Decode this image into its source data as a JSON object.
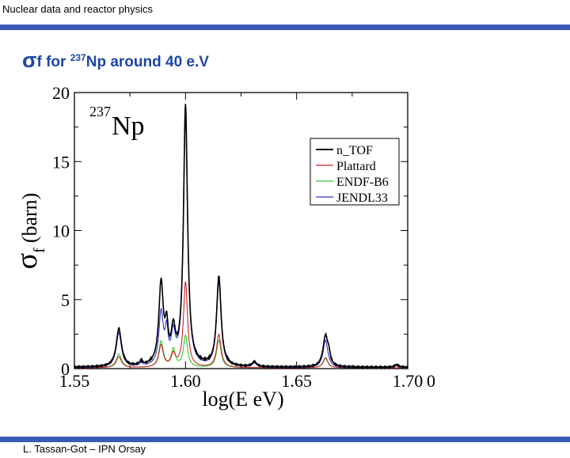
{
  "header": {
    "title": "Nuclear data and reactor physics"
  },
  "slide": {
    "title_symbol": "σ",
    "title_sub": "f",
    "title_pre": " for ",
    "title_mass": "237",
    "title_rest": "Np around 40 e.V"
  },
  "footer": {
    "text": "L. Tassan-Got – IPN Orsay"
  },
  "colors": {
    "bar": "#3a5bb5",
    "title": "#1f46a6"
  },
  "chart_data": {
    "type": "line",
    "nuclide_mass": "237",
    "nuclide_symbol": "Np",
    "xlabel": "log(E eV)",
    "ylabel_symbol": "σ",
    "ylabel_sub": "f",
    "ylabel_unit": "(barn)",
    "xlim": [
      1.55,
      1.7
    ],
    "ylim": [
      0,
      20
    ],
    "xticks": [
      "1.55",
      "1.60",
      "1.65",
      "1.70"
    ],
    "xtick_last_extra": "0",
    "yticks": [
      "0",
      "5",
      "10",
      "15",
      "20"
    ],
    "legend_position": "top-right",
    "series": [
      {
        "name": "n_TOF",
        "color": "#000000",
        "peaks": [
          [
            1.57,
            2.7,
            0.0014
          ],
          [
            1.58,
            0.25,
            0.001
          ],
          [
            1.589,
            5.9,
            0.0012
          ],
          [
            1.5915,
            2.3,
            0.0008
          ],
          [
            1.5945,
            2.3,
            0.0011
          ],
          [
            1.6,
            18.8,
            0.0011
          ],
          [
            1.615,
            6.5,
            0.0012
          ],
          [
            1.631,
            0.35,
            0.0012
          ],
          [
            1.663,
            2.2,
            0.0013
          ],
          [
            1.6645,
            0.6,
            0.0008
          ],
          [
            1.695,
            0.2,
            0.001
          ]
        ]
      },
      {
        "name": "Plattard",
        "color": "#cc2222",
        "peaks": [
          [
            1.57,
            0.8,
            0.0014
          ],
          [
            1.589,
            1.6,
            0.0012
          ],
          [
            1.5945,
            0.9,
            0.0011
          ],
          [
            1.6,
            6.2,
            0.0011
          ],
          [
            1.615,
            2.4,
            0.0012
          ],
          [
            1.663,
            0.7,
            0.0013
          ]
        ]
      },
      {
        "name": "ENDF-B6",
        "color": "#33cc33",
        "peaks": [
          [
            1.57,
            1.0,
            0.0014
          ],
          [
            1.589,
            1.9,
            0.0012
          ],
          [
            1.5945,
            1.3,
            0.0011
          ],
          [
            1.6,
            2.3,
            0.0011
          ],
          [
            1.615,
            2.0,
            0.0012
          ],
          [
            1.663,
            0.75,
            0.0013
          ]
        ]
      },
      {
        "name": "JENDL33",
        "color": "#3333cc",
        "peaks": [
          [
            1.57,
            2.5,
            0.0014
          ],
          [
            1.58,
            0.2,
            0.001
          ],
          [
            1.589,
            3.8,
            0.0012
          ],
          [
            1.5915,
            2.2,
            0.0008
          ],
          [
            1.5945,
            2.1,
            0.0011
          ],
          [
            1.6,
            17.8,
            0.0011
          ],
          [
            1.615,
            6.1,
            0.0012
          ],
          [
            1.631,
            0.3,
            0.0012
          ],
          [
            1.663,
            2.0,
            0.0013
          ],
          [
            1.695,
            0.15,
            0.001
          ]
        ]
      }
    ]
  }
}
